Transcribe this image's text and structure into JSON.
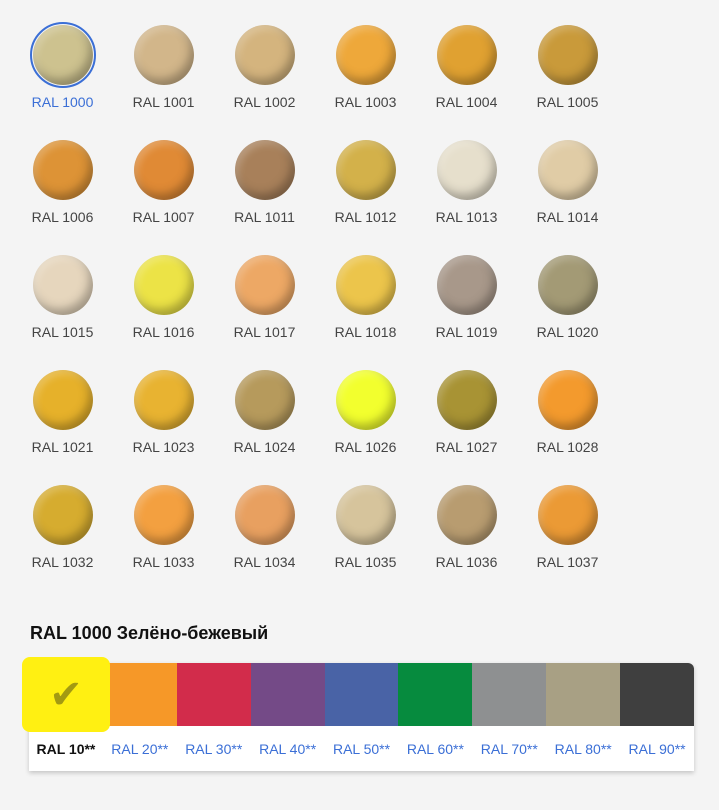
{
  "selected": "RAL 1000",
  "swatches": [
    {
      "label": "RAL 1000",
      "color": "#cdc28f"
    },
    {
      "label": "RAL 1001",
      "color": "#d2b68a"
    },
    {
      "label": "RAL 1002",
      "color": "#d4b47e"
    },
    {
      "label": "RAL 1003",
      "color": "#eea83a"
    },
    {
      "label": "RAL 1004",
      "color": "#e0a131"
    },
    {
      "label": "RAL 1005",
      "color": "#c99a3a"
    },
    {
      "label": "RAL 1006",
      "color": "#dd9336"
    },
    {
      "label": "RAL 1007",
      "color": "#e08a35"
    },
    {
      "label": "RAL 1011",
      "color": "#a8805a"
    },
    {
      "label": "RAL 1012",
      "color": "#d3b14a"
    },
    {
      "label": "RAL 1013",
      "color": "#e6dfcc"
    },
    {
      "label": "RAL 1014",
      "color": "#e0cca6"
    },
    {
      "label": "RAL 1015",
      "color": "#e6d6bd"
    },
    {
      "label": "RAL 1016",
      "color": "#ece346"
    },
    {
      "label": "RAL 1017",
      "color": "#eda865"
    },
    {
      "label": "RAL 1018",
      "color": "#ecc54b"
    },
    {
      "label": "RAL 1019",
      "color": "#a8988a"
    },
    {
      "label": "RAL 1020",
      "color": "#a39a75"
    },
    {
      "label": "RAL 1021",
      "color": "#e6b12a"
    },
    {
      "label": "RAL 1023",
      "color": "#e8b331"
    },
    {
      "label": "RAL 1024",
      "color": "#b69a5c"
    },
    {
      "label": "RAL 1026",
      "color": "#f2ff2e"
    },
    {
      "label": "RAL 1027",
      "color": "#a89334"
    },
    {
      "label": "RAL 1028",
      "color": "#f39a2d"
    },
    {
      "label": "RAL 1032",
      "color": "#d6ac2f"
    },
    {
      "label": "RAL 1033",
      "color": "#f3a040"
    },
    {
      "label": "RAL 1034",
      "color": "#e8a060"
    },
    {
      "label": "RAL 1035",
      "color": "#d6c49c"
    },
    {
      "label": "RAL 1036",
      "color": "#b89c70"
    },
    {
      "label": "RAL 1037",
      "color": "#eb9a35"
    }
  ],
  "selected_title": "RAL 1000 Зелёно-бежевый",
  "groups": [
    {
      "label": "RAL 10**",
      "color": "#fff012",
      "active": true,
      "icon": "checkmark-icon",
      "mark": "✔"
    },
    {
      "label": "RAL 20**",
      "color": "#f69828"
    },
    {
      "label": "RAL 30**",
      "color": "#d22c4b"
    },
    {
      "label": "RAL 40**",
      "color": "#744a87"
    },
    {
      "label": "RAL 50**",
      "color": "#4963a6"
    },
    {
      "label": "RAL 60**",
      "color": "#068b3e"
    },
    {
      "label": "RAL 70**",
      "color": "#8e9091"
    },
    {
      "label": "RAL 80**",
      "color": "#a8a084"
    },
    {
      "label": "RAL 90**",
      "color": "#3f3f3f"
    }
  ]
}
